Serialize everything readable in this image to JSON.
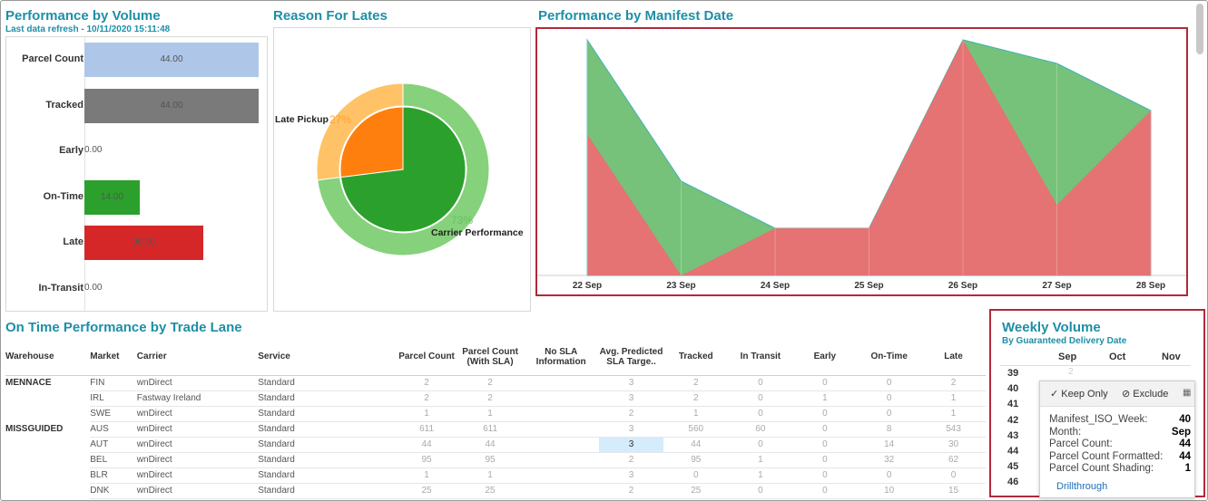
{
  "volume": {
    "title": "Performance by Volume",
    "refresh": "Last data refresh - 10/11/2020 15:11:48",
    "rows": [
      {
        "label": "Parcel Count",
        "value": 44,
        "text": "44.00",
        "color": "#aec6e8"
      },
      {
        "label": "Tracked",
        "value": 44,
        "text": "44.00",
        "color": "#7a7a7a"
      },
      {
        "label": "Early",
        "value": 0,
        "text": "0.00",
        "color": "#cccccc"
      },
      {
        "label": "On-Time",
        "value": 14,
        "text": "14.00",
        "color": "#2ca02c"
      },
      {
        "label": "Late",
        "value": 30,
        "text": "30.00",
        "color": "#d62728"
      },
      {
        "label": "In-Transit",
        "value": 0,
        "text": "0.00",
        "color": "#cccccc"
      }
    ],
    "max": 44
  },
  "reasons": {
    "title": "Reason For Lates",
    "late_pickup_label": "Late Pickup",
    "late_pickup_pct": "27%",
    "carrier_label": "Carrier Performance",
    "carrier_pct": "73%"
  },
  "manifest": {
    "title": "Performance by Manifest Date",
    "x_labels": [
      "22 Sep",
      "23 Sep",
      "24 Sep",
      "25 Sep",
      "26 Sep",
      "27 Sep",
      "28 Sep"
    ]
  },
  "chart_data": [
    {
      "type": "bar",
      "title": "Performance by Volume",
      "categories": [
        "Parcel Count",
        "Tracked",
        "Early",
        "On-Time",
        "Late",
        "In-Transit"
      ],
      "values": [
        44,
        44,
        0,
        14,
        30,
        0
      ]
    },
    {
      "type": "pie",
      "title": "Reason For Lates",
      "categories": [
        "Late Pickup",
        "Carrier Performance"
      ],
      "values": [
        27,
        73
      ],
      "colors": [
        "#ff7f0e",
        "#2ca02c"
      ]
    },
    {
      "type": "area",
      "title": "Performance by Manifest Date",
      "categories": [
        "22 Sep",
        "23 Sep",
        "24 Sep",
        "25 Sep",
        "26 Sep",
        "27 Sep",
        "28 Sep"
      ],
      "series": [
        {
          "color": "#e57373",
          "values": [
            60,
            0,
            20,
            20,
            100,
            30,
            70
          ]
        },
        {
          "color": "#76c27a",
          "values": [
            100,
            40,
            20,
            20,
            100,
            90,
            70
          ]
        }
      ],
      "ylim": [
        0,
        100
      ],
      "grid": false
    }
  ],
  "trade": {
    "title": "On Time Performance by Trade Lane",
    "headers": [
      "Warehouse",
      "Market",
      "Carrier",
      "Service",
      "Parcel Count",
      "Parcel Count (With SLA)",
      "No SLA Information",
      "Avg. Predicted SLA Targe..",
      "Tracked",
      "In Transit",
      "Early",
      "On-Time",
      "Late"
    ],
    "rows": [
      [
        "MENNACE",
        "FIN",
        "wnDirect",
        "Standard",
        "2",
        "2",
        "",
        "3",
        "2",
        "0",
        "0",
        "0",
        "2"
      ],
      [
        "",
        "IRL",
        "Fastway Ireland",
        "Standard",
        "2",
        "2",
        "",
        "3",
        "2",
        "0",
        "1",
        "0",
        "1"
      ],
      [
        "",
        "SWE",
        "wnDirect",
        "Standard",
        "1",
        "1",
        "",
        "2",
        "1",
        "0",
        "0",
        "0",
        "1"
      ],
      [
        "MISSGUIDED",
        "AUS",
        "wnDirect",
        "Standard",
        "611",
        "611",
        "",
        "3",
        "560",
        "60",
        "0",
        "8",
        "543"
      ],
      [
        "",
        "AUT",
        "wnDirect",
        "Standard",
        "44",
        "44",
        "",
        "3",
        "44",
        "0",
        "0",
        "14",
        "30"
      ],
      [
        "",
        "BEL",
        "wnDirect",
        "Standard",
        "95",
        "95",
        "",
        "2",
        "95",
        "1",
        "0",
        "32",
        "62"
      ],
      [
        "",
        "BLR",
        "wnDirect",
        "Standard",
        "1",
        "1",
        "",
        "3",
        "0",
        "1",
        "0",
        "0",
        "0"
      ],
      [
        "",
        "DNK",
        "wnDirect",
        "Standard",
        "25",
        "25",
        "",
        "2",
        "25",
        "0",
        "0",
        "10",
        "15"
      ]
    ]
  },
  "weekly": {
    "title": "Weekly Volume",
    "subtitle": "By Guaranteed Delivery Date",
    "months": [
      "Sep",
      "Oct",
      "Nov"
    ],
    "weeks": [
      "39",
      "40",
      "41",
      "42",
      "43",
      "44",
      "45",
      "46"
    ],
    "faint_value": "2"
  },
  "tooltip": {
    "keep_only": "Keep Only",
    "exclude": "Exclude",
    "fields": [
      {
        "k": "Manifest_ISO_Week:",
        "v": "40"
      },
      {
        "k": "Month:",
        "v": "Sep"
      },
      {
        "k": "Parcel Count:",
        "v": "44"
      },
      {
        "k": "Parcel Count Formatted:",
        "v": "44"
      },
      {
        "k": "Parcel Count Shading:",
        "v": "1"
      }
    ],
    "drill": "Drillthrough"
  }
}
